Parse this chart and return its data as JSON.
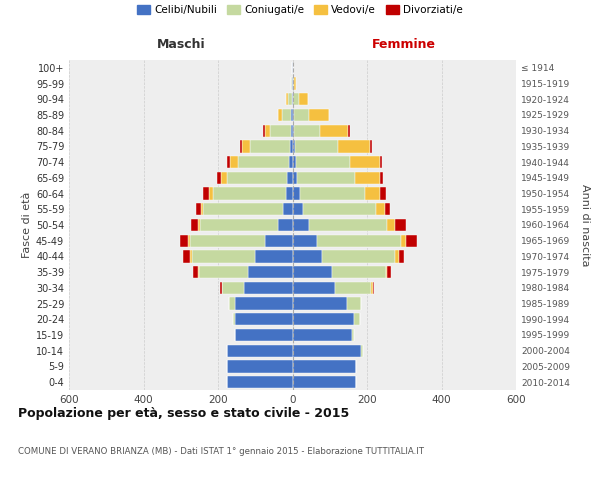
{
  "age_groups": [
    "0-4",
    "5-9",
    "10-14",
    "15-19",
    "20-24",
    "25-29",
    "30-34",
    "35-39",
    "40-44",
    "45-49",
    "50-54",
    "55-59",
    "60-64",
    "65-69",
    "70-74",
    "75-79",
    "80-84",
    "85-89",
    "90-94",
    "95-99",
    "100+"
  ],
  "birth_years": [
    "2010-2014",
    "2005-2009",
    "2000-2004",
    "1995-1999",
    "1990-1994",
    "1985-1989",
    "1980-1984",
    "1975-1979",
    "1970-1974",
    "1965-1969",
    "1960-1964",
    "1955-1959",
    "1950-1954",
    "1945-1949",
    "1940-1944",
    "1935-1939",
    "1930-1934",
    "1925-1929",
    "1920-1924",
    "1915-1919",
    "≤ 1914"
  ],
  "maschi": {
    "celibi": [
      175,
      175,
      175,
      155,
      155,
      155,
      130,
      120,
      100,
      75,
      38,
      25,
      18,
      14,
      10,
      8,
      5,
      3,
      2,
      1,
      1
    ],
    "coniugati": [
      0,
      0,
      0,
      0,
      5,
      15,
      60,
      130,
      170,
      200,
      210,
      215,
      195,
      162,
      135,
      105,
      55,
      25,
      10,
      2,
      1
    ],
    "vedovi": [
      0,
      0,
      0,
      0,
      0,
      0,
      0,
      5,
      5,
      5,
      5,
      5,
      10,
      15,
      22,
      22,
      15,
      10,
      5,
      0,
      0
    ],
    "divorziati": [
      0,
      0,
      0,
      0,
      0,
      0,
      5,
      12,
      18,
      22,
      20,
      15,
      18,
      12,
      10,
      5,
      5,
      0,
      0,
      0,
      0
    ]
  },
  "femmine": {
    "nubili": [
      170,
      170,
      185,
      160,
      165,
      145,
      115,
      105,
      80,
      65,
      45,
      28,
      20,
      12,
      10,
      8,
      5,
      3,
      2,
      0,
      0
    ],
    "coniugate": [
      0,
      0,
      5,
      5,
      15,
      40,
      95,
      145,
      195,
      225,
      210,
      195,
      175,
      155,
      145,
      115,
      70,
      40,
      15,
      5,
      1
    ],
    "vedove": [
      0,
      0,
      0,
      0,
      0,
      0,
      5,
      5,
      10,
      15,
      20,
      25,
      40,
      68,
      80,
      85,
      75,
      55,
      25,
      5,
      0
    ],
    "divorziate": [
      0,
      0,
      0,
      0,
      0,
      0,
      5,
      10,
      15,
      30,
      30,
      15,
      15,
      8,
      5,
      5,
      5,
      0,
      0,
      0,
      0
    ]
  },
  "colors": {
    "celibi_nubili": "#4472C4",
    "coniugati": "#C5D9A0",
    "vedovi": "#F5C040",
    "divorziati": "#C00000"
  },
  "xlim": 600,
  "title": "Popolazione per età, sesso e stato civile - 2015",
  "subtitle": "COMUNE DI VERANO BRIANZA (MB) - Dati ISTAT 1° gennaio 2015 - Elaborazione TUTTITALIA.IT",
  "xlabel_left": "Maschi",
  "xlabel_right": "Femmine",
  "ylabel_left": "Fasce di età",
  "ylabel_right": "Anni di nascita",
  "background_color": "#ffffff",
  "plot_bg_color": "#eeeeee"
}
